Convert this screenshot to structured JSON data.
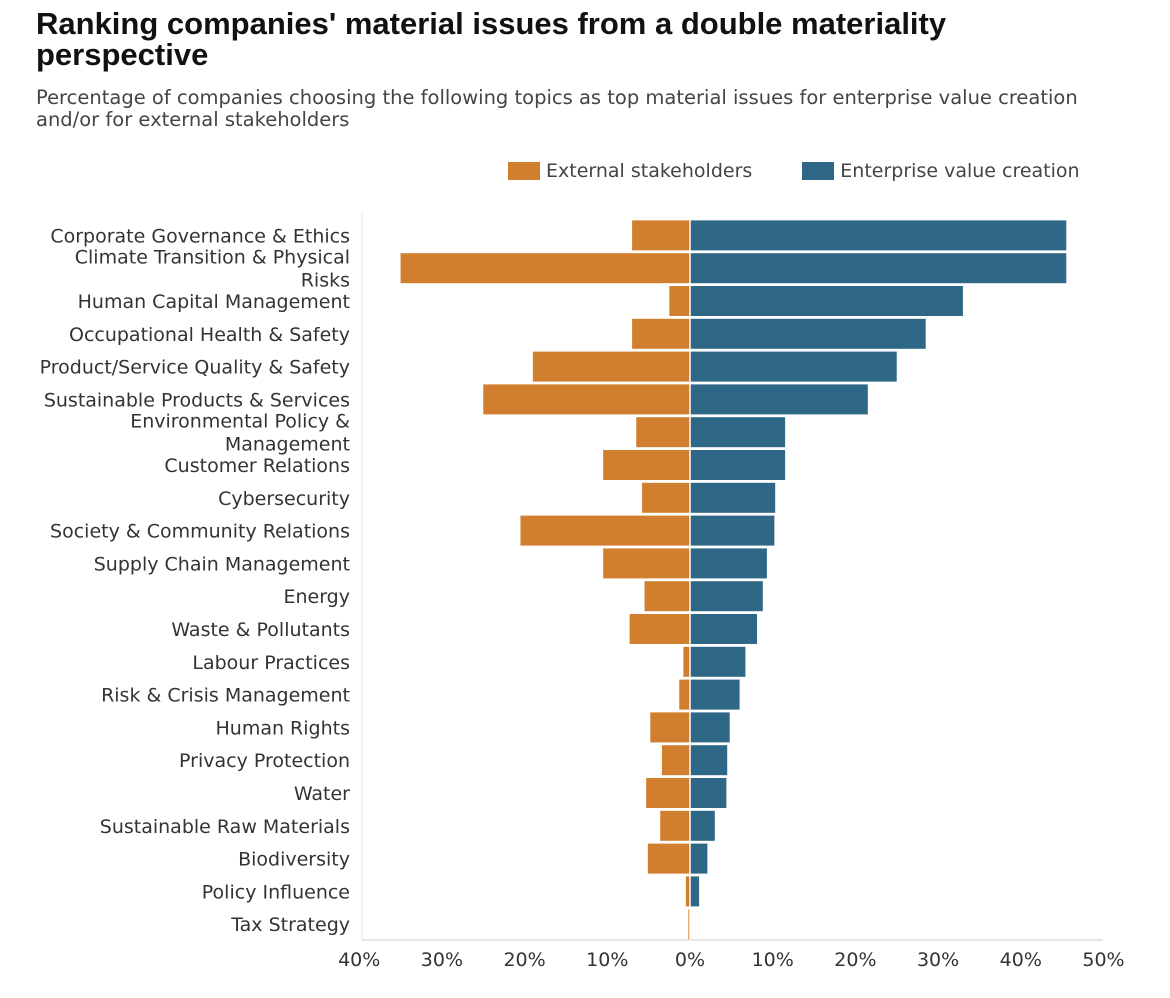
{
  "chart_data": {
    "type": "bar",
    "orientation": "horizontal-diverging",
    "title": "Ranking companies' material issues from a double materiality perspective",
    "subtitle": "Percentage of companies choosing the following topics as top material issues for enterprise value creation and/or for external stakeholders",
    "legend_position": "top-right",
    "xlim": [
      -40,
      50
    ],
    "x_ticks": [
      -40,
      -30,
      -20,
      -10,
      0,
      10,
      20,
      30,
      40,
      50
    ],
    "x_tick_labels": [
      "40%",
      "30%",
      "20%",
      "10%",
      "0%",
      "10%",
      "20%",
      "30%",
      "40%",
      "50%"
    ],
    "categories": [
      [
        "Corporate Governance & Ethics"
      ],
      [
        "Climate Transition & Physical",
        "Risks"
      ],
      [
        "Human Capital Management"
      ],
      [
        "Occupational Health & Safety"
      ],
      [
        "Product/Service Quality & Safety"
      ],
      [
        "Sustainable Products & Services"
      ],
      [
        "Environmental Policy &",
        "Management"
      ],
      [
        "Customer Relations"
      ],
      [
        "Cybersecurity"
      ],
      [
        "Society & Community Relations"
      ],
      [
        "Supply Chain Management"
      ],
      [
        "Energy"
      ],
      [
        "Waste & Pollutants"
      ],
      [
        "Labour Practices"
      ],
      [
        "Risk & Crisis Management"
      ],
      [
        "Human Rights"
      ],
      [
        "Privacy Protection"
      ],
      [
        "Water"
      ],
      [
        "Sustainable Raw Materials"
      ],
      [
        "Biodiversity"
      ],
      [
        "Policy Influence"
      ],
      [
        "Tax Strategy"
      ]
    ],
    "series": [
      {
        "name": "External stakeholders",
        "color": "#d17f2e",
        "direction": "left",
        "values": [
          7,
          35,
          2.5,
          7,
          19,
          25,
          6.5,
          10.5,
          5.8,
          20.5,
          10.5,
          5.5,
          7.3,
          0.8,
          1.3,
          4.8,
          3.4,
          5.3,
          3.6,
          5.1,
          0.5,
          0.2
        ]
      },
      {
        "name": "Enterprise value creation",
        "color": "#2e6886",
        "direction": "right",
        "values": [
          45.5,
          45.5,
          33,
          28.5,
          25,
          21.5,
          11.5,
          11.5,
          10.3,
          10.2,
          9.3,
          8.8,
          8.1,
          6.7,
          6,
          4.8,
          4.5,
          4.4,
          3,
          2.1,
          1.1,
          0
        ]
      }
    ]
  }
}
